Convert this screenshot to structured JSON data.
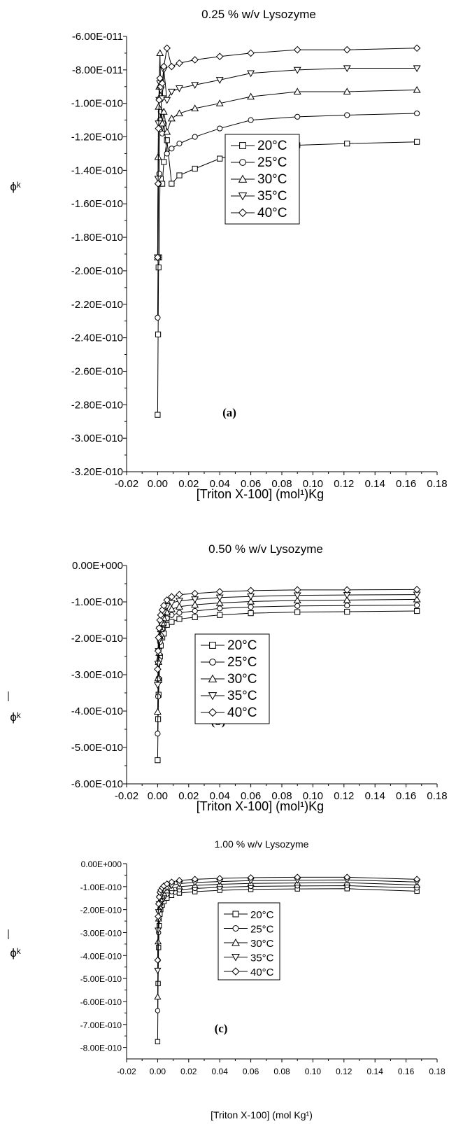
{
  "chart_data": [
    {
      "type": "line",
      "panel_label": "(a)",
      "title": "0.25 % w/v Lysozyme",
      "xlabel": "[Triton X-100] (mol¹)Kg",
      "ylabel": "ϕᵏ",
      "xlim": [
        -0.02,
        0.18
      ],
      "ylim": [
        -3.2e-10,
        -6e-11
      ],
      "x_ticks": [
        "-0.02",
        "0.00",
        "0.02",
        "0.04",
        "0.06",
        "0.08",
        "0.10",
        "0.12",
        "0.14",
        "0.16",
        "0.18"
      ],
      "y_ticks": [
        "-6.00E-011",
        "-8.00E-011",
        "-1.00E-010",
        "-1.20E-010",
        "-1.40E-010",
        "-1.60E-010",
        "-1.80E-010",
        "-2.00E-010",
        "-2.20E-010",
        "-2.40E-010",
        "-2.60E-010",
        "-2.80E-010",
        "-3.00E-010",
        "-3.20E-010"
      ],
      "x": [
        0.0,
        0.0003,
        0.0006,
        0.001,
        0.0015,
        0.002,
        0.003,
        0.004,
        0.006,
        0.009,
        0.014,
        0.024,
        0.04,
        0.06,
        0.09,
        0.122,
        0.167
      ],
      "legend_position": "center-right",
      "series": [
        {
          "name": "20°C",
          "marker": "square",
          "values": [
            -2.86e-10,
            -2.38e-10,
            -1.98e-10,
            -1.92e-10,
            -1.48e-10,
            -1.45e-10,
            -1.48e-10,
            -1.35e-10,
            -1.22e-10,
            -1.48e-10,
            -1.43e-10,
            -1.39e-10,
            -1.33e-10,
            -1.28e-10,
            -1.25e-10,
            -1.24e-10,
            -1.23e-10
          ]
        },
        {
          "name": "25°C",
          "marker": "circle",
          "values": [
            -2.28e-10,
            -1.92e-10,
            -1.48e-10,
            -1.42e-10,
            -1.1e-10,
            -1.05e-10,
            -1.18e-10,
            -1.12e-10,
            -1.3e-10,
            -1.27e-10,
            -1.24e-10,
            -1.2e-10,
            -1.15e-10,
            -1.1e-10,
            -1.08e-10,
            -1.07e-10,
            -1.06e-10
          ]
        },
        {
          "name": "30°C",
          "marker": "triangle-up",
          "values": [
            -1.92e-10,
            -1.32e-10,
            -1.02e-10,
            -9e-11,
            -7e-11,
            -9.5e-11,
            -1.12e-10,
            -1.05e-10,
            -1.17e-10,
            -1.09e-10,
            -1.06e-10,
            -1.03e-10,
            -1e-10,
            -9.6e-11,
            -9.3e-11,
            -9.3e-11,
            -9.2e-11
          ]
        },
        {
          "name": "35°C",
          "marker": "triangle-down",
          "values": [
            -1.92e-10,
            -1.45e-10,
            -1.12e-10,
            -9.8e-11,
            -8.8e-11,
            -9.2e-11,
            -9.7e-11,
            -8e-11,
            -9.8e-11,
            -9.3e-11,
            -9.1e-11,
            -8.9e-11,
            -8.6e-11,
            -8.2e-11,
            -8e-11,
            -7.9e-11,
            -7.9e-11
          ]
        },
        {
          "name": "40°C",
          "marker": "diamond",
          "values": [
            -1.92e-10,
            -1.48e-10,
            -1.15e-10,
            -9.8e-11,
            -8.5e-11,
            -9e-11,
            -8.8e-11,
            -7.8e-11,
            -6.7e-11,
            -7.8e-11,
            -7.6e-11,
            -7.4e-11,
            -7.2e-11,
            -7e-11,
            -6.8e-11,
            -6.8e-11,
            -6.7e-11
          ]
        }
      ]
    },
    {
      "type": "line",
      "panel_label": "(b)",
      "title": "0.50 % w/v Lysozyme",
      "xlabel": "[Triton X-100] (mol¹)Kg",
      "ylabel": "ϕᵏ",
      "xlim": [
        -0.02,
        0.18
      ],
      "ylim": [
        -6e-10,
        0.0
      ],
      "x_ticks": [
        "-0.02",
        "0.00",
        "0.02",
        "0.04",
        "0.06",
        "0.08",
        "0.10",
        "0.12",
        "0.14",
        "0.16",
        "0.18"
      ],
      "y_ticks": [
        "0.00E+000",
        "-1.00E-010",
        "-2.00E-010",
        "-3.00E-010",
        "-4.00E-010",
        "-5.00E-010",
        "-6.00E-010"
      ],
      "x": [
        0.0,
        0.0003,
        0.0006,
        0.001,
        0.0015,
        0.002,
        0.003,
        0.004,
        0.006,
        0.009,
        0.014,
        0.024,
        0.04,
        0.06,
        0.09,
        0.122,
        0.167
      ],
      "legend_position": "center-left",
      "series": [
        {
          "name": "20°C",
          "marker": "square",
          "values": [
            -5.35e-10,
            -4.22e-10,
            -3.55e-10,
            -3.15e-10,
            -2.5e-10,
            -2.2e-10,
            -1.98e-10,
            -1.87e-10,
            -1.63e-10,
            -1.55e-10,
            -1.47e-10,
            -1.42e-10,
            -1.36e-10,
            -1.31e-10,
            -1.28e-10,
            -1.27e-10,
            -1.25e-10
          ]
        },
        {
          "name": "25°C",
          "marker": "circle",
          "values": [
            -4.62e-10,
            -3.6e-10,
            -3.1e-10,
            -2.6e-10,
            -2.1e-10,
            -1.92e-10,
            -1.75e-10,
            -1.62e-10,
            -1.45e-10,
            -1.36e-10,
            -1.3e-10,
            -1.25e-10,
            -1.18e-10,
            -1.14e-10,
            -1.11e-10,
            -1.1e-10,
            -1.09e-10
          ]
        },
        {
          "name": "30°C",
          "marker": "triangle-up",
          "values": [
            -4.02e-10,
            -3.1e-10,
            -2.65e-10,
            -2.4e-10,
            -1.95e-10,
            -1.75e-10,
            -1.58e-10,
            -1.45e-10,
            -1.29e-10,
            -1.2e-10,
            -1.13e-10,
            -1.08e-10,
            -1.03e-10,
            -9.9e-11,
            -9.6e-11,
            -9.5e-11,
            -9.3e-11
          ]
        },
        {
          "name": "35°C",
          "marker": "triangle-down",
          "values": [
            -3.28e-10,
            -2.7e-10,
            -2.35e-10,
            -2.05e-10,
            -1.75e-10,
            -1.58e-10,
            -1.4e-10,
            -1.28e-10,
            -1.12e-10,
            -1.03e-10,
            -9.7e-11,
            -9.3e-11,
            -8.8e-11,
            -8.5e-11,
            -8.2e-11,
            -8.1e-11,
            -8e-11
          ]
        },
        {
          "name": "40°C",
          "marker": "diamond",
          "values": [
            -2.85e-10,
            -2.35e-10,
            -1.98e-10,
            -1.72e-10,
            -1.5e-10,
            -1.36e-10,
            -1.22e-10,
            -1.1e-10,
            -9.5e-11,
            -8.6e-11,
            -8e-11,
            -7.7e-11,
            -7.2e-11,
            -6.9e-11,
            -6.7e-11,
            -6.7e-11,
            -6.6e-11
          ]
        }
      ]
    },
    {
      "type": "line",
      "panel_label": "(c)",
      "title": "1.00 % w/v  Lysozyme",
      "xlabel": "[Triton X-100] (mol Kg¹)",
      "ylabel": "ϕᵏ",
      "xlim": [
        -0.02,
        0.18
      ],
      "ylim": [
        -8.5e-10,
        0.0
      ],
      "x_ticks": [
        "-0.02",
        "0.00",
        "0.02",
        "0.04",
        "0.06",
        "0.08",
        "0.10",
        "0.12",
        "0.14",
        "0.16",
        "0.18"
      ],
      "y_ticks": [
        "0.00E+000",
        "-1.00E-010",
        "-2.00E-010",
        "-3.00E-010",
        "-4.00E-010",
        "-5.00E-010",
        "-6.00E-010",
        "-7.00E-010",
        "-8.00E-010"
      ],
      "x": [
        0.0,
        0.0003,
        0.0006,
        0.001,
        0.0015,
        0.002,
        0.003,
        0.004,
        0.006,
        0.009,
        0.014,
        0.024,
        0.04,
        0.06,
        0.09,
        0.122,
        0.167
      ],
      "legend_position": "center",
      "series": [
        {
          "name": "20°C",
          "marker": "square",
          "values": [
            -7.75e-10,
            -5.22e-10,
            -3.65e-10,
            -2.7e-10,
            -2.2e-10,
            -2e-10,
            -1.8e-10,
            -1.65e-10,
            -1.5e-10,
            -1.38e-10,
            -1.28e-10,
            -1.22e-10,
            -1.16e-10,
            -1.12e-10,
            -1.1e-10,
            -1.09e-10,
            -1.2e-10
          ]
        },
        {
          "name": "25°C",
          "marker": "circle",
          "values": [
            -6.4e-10,
            -4.2e-10,
            -3e-10,
            -2.4e-10,
            -1.95e-10,
            -1.75e-10,
            -1.58e-10,
            -1.45e-10,
            -1.32e-10,
            -1.22e-10,
            -1.14e-10,
            -1.08e-10,
            -1.03e-10,
            -9.9e-11,
            -9.7e-11,
            -9.6e-11,
            -1.06e-10
          ]
        },
        {
          "name": "30°C",
          "marker": "triangle-up",
          "values": [
            -5.8e-10,
            -3.4e-10,
            -2.4e-10,
            -2e-10,
            -1.7e-10,
            -1.55e-10,
            -1.4e-10,
            -1.3e-10,
            -1.18e-10,
            -1.08e-10,
            -1e-10,
            -9.5e-11,
            -9e-11,
            -8.6e-11,
            -8.4e-11,
            -8.3e-11,
            -9.3e-11
          ]
        },
        {
          "name": "35°C",
          "marker": "triangle-down",
          "values": [
            -4.65e-10,
            -2.9e-10,
            -2.1e-10,
            -1.75e-10,
            -1.5e-10,
            -1.38e-10,
            -1.25e-10,
            -1.15e-10,
            -1.04e-10,
            -9.5e-11,
            -8.7e-11,
            -8.2e-11,
            -7.8e-11,
            -7.4e-11,
            -7.2e-11,
            -7.1e-11,
            -8e-11
          ]
        },
        {
          "name": "40°C",
          "marker": "diamond",
          "values": [
            -4.2e-10,
            -2.3e-10,
            -1.75e-10,
            -1.45e-10,
            -1.25e-10,
            -1.15e-10,
            -1.05e-10,
            -9.7e-11,
            -8.8e-11,
            -8e-11,
            -7.3e-11,
            -6.8e-11,
            -6.4e-11,
            -6.1e-11,
            -5.9e-11,
            -5.9e-11,
            -6.8e-11
          ]
        }
      ]
    }
  ]
}
